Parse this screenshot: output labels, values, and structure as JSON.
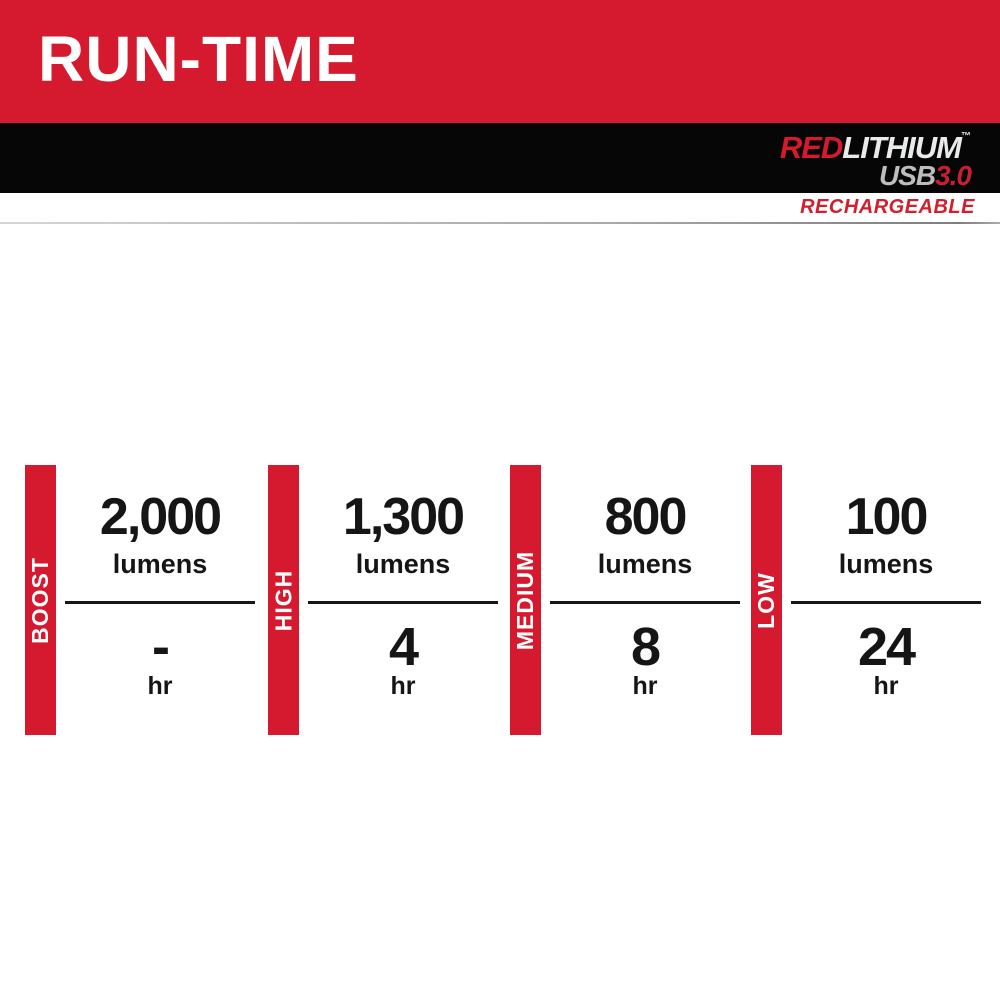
{
  "header": {
    "title": "RUN-TIME"
  },
  "brand": {
    "line1_red": "RED",
    "line1_white": "LITHIUM",
    "trademark": "™",
    "line2_gray": "USB",
    "line2_red": "3.0",
    "tagline": "RECHARGEABLE"
  },
  "columns": [
    {
      "mode": "BOOST",
      "lumens": "2,000",
      "lumens_unit": "lumens",
      "hours": "-",
      "hours_unit": "hr"
    },
    {
      "mode": "HIGH",
      "lumens": "1,300",
      "lumens_unit": "lumens",
      "hours": "4",
      "hours_unit": "hr"
    },
    {
      "mode": "MEDIUM",
      "lumens": "800",
      "lumens_unit": "lumens",
      "hours": "8",
      "hours_unit": "hr"
    },
    {
      "mode": "LOW",
      "lumens": "100",
      "lumens_unit": "lumens",
      "hours": "24",
      "hours_unit": "hr"
    }
  ],
  "colors": {
    "brand_red": "#d5192e",
    "black": "#060606",
    "silver": "#bcbdbf",
    "text_black": "#151515",
    "divider_gray": "#aaaaaa"
  },
  "chart_data": {
    "type": "table",
    "title": "RUN-TIME",
    "categories": [
      "BOOST",
      "HIGH",
      "MEDIUM",
      "LOW"
    ],
    "series": [
      {
        "name": "lumens",
        "values": [
          2000,
          1300,
          800,
          100
        ]
      },
      {
        "name": "hours",
        "values": [
          null,
          4,
          8,
          24
        ]
      }
    ],
    "notes": "BOOST hours shown as a dash (-); footer brand: REDLITHIUM USB 3.0 RECHARGEABLE"
  }
}
